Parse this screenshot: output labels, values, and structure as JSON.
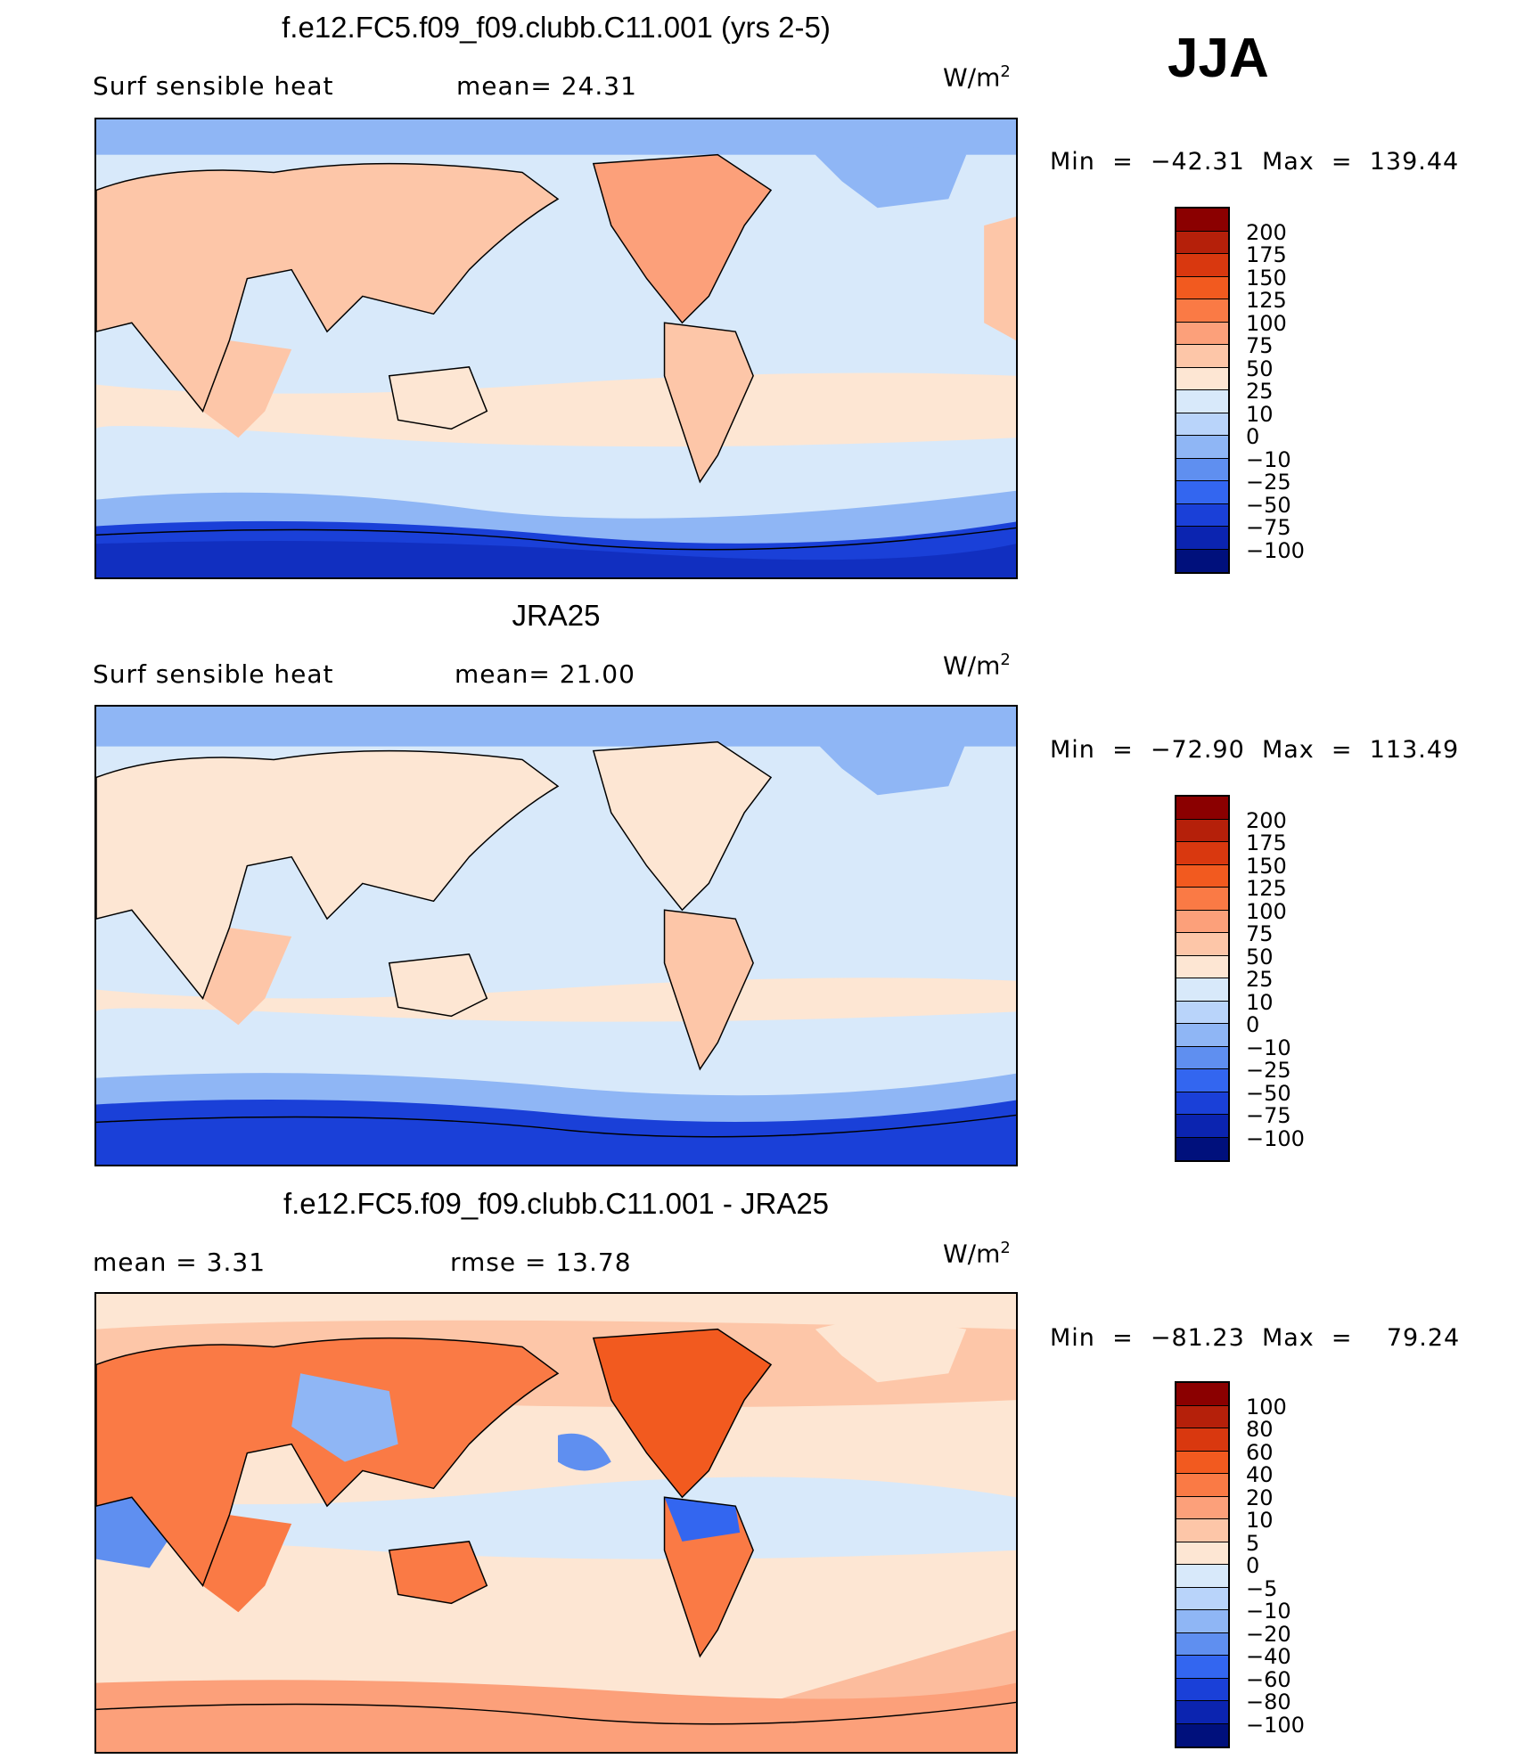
{
  "season": "JJA",
  "panels": [
    {
      "title": "f.e12.FC5.f09_f09.clubb.C11.001 (yrs 2-5)",
      "left_text": "Surf  sensible  heat",
      "mean_text": "mean=   24.31",
      "units_base": "W/m",
      "units_exp": "2",
      "minmax_text": "Min  =  −42.31  Max  =  139.44",
      "colorbar_labels": [
        "200",
        "175",
        "150",
        "125",
        "100",
        "75",
        "50",
        "25",
        "10",
        "0",
        "−10",
        "−25",
        "−50",
        "−75",
        "−100"
      ],
      "colorbar_colors": [
        "#8b0000",
        "#b5200a",
        "#d9380f",
        "#f25a1f",
        "#fa7a45",
        "#fca07a",
        "#fdc6a8",
        "#fde6d3",
        "#d8e9fa",
        "#b9d4fa",
        "#8fb6f5",
        "#5f8ff0",
        "#3366f0",
        "#1a40d8",
        "#0b24b0",
        "#00107c"
      ]
    },
    {
      "title": "JRA25",
      "left_text": "Surf  sensible  heat",
      "mean_text": "mean=   21.00",
      "units_base": "W/m",
      "units_exp": "2",
      "minmax_text": "Min  =  −72.90  Max  =  113.49",
      "colorbar_labels": [
        "200",
        "175",
        "150",
        "125",
        "100",
        "75",
        "50",
        "25",
        "10",
        "0",
        "−10",
        "−25",
        "−50",
        "−75",
        "−100"
      ],
      "colorbar_colors": [
        "#8b0000",
        "#b5200a",
        "#d9380f",
        "#f25a1f",
        "#fa7a45",
        "#fca07a",
        "#fdc6a8",
        "#fde6d3",
        "#d8e9fa",
        "#b9d4fa",
        "#8fb6f5",
        "#5f8ff0",
        "#3366f0",
        "#1a40d8",
        "#0b24b0",
        "#00107c"
      ]
    },
    {
      "title": "f.e12.FC5.f09_f09.clubb.C11.001 - JRA25",
      "left_text": "mean  =      3.31",
      "mean_text": "rmse  =     13.78",
      "units_base": "W/m",
      "units_exp": "2",
      "minmax_text": "Min  =  −81.23  Max  =    79.24",
      "colorbar_labels": [
        "100",
        "80",
        "60",
        "40",
        "20",
        "10",
        "5",
        "0",
        "−5",
        "−10",
        "−20",
        "−40",
        "−60",
        "−80",
        "−100"
      ],
      "colorbar_colors": [
        "#8b0000",
        "#b5200a",
        "#d9380f",
        "#f25a1f",
        "#fa7a45",
        "#fca07a",
        "#fdc6a8",
        "#fde6d3",
        "#d8e9fa",
        "#b9d4fa",
        "#8fb6f5",
        "#5f8ff0",
        "#3366f0",
        "#1a40d8",
        "#0b24b0",
        "#00107c"
      ]
    }
  ]
}
